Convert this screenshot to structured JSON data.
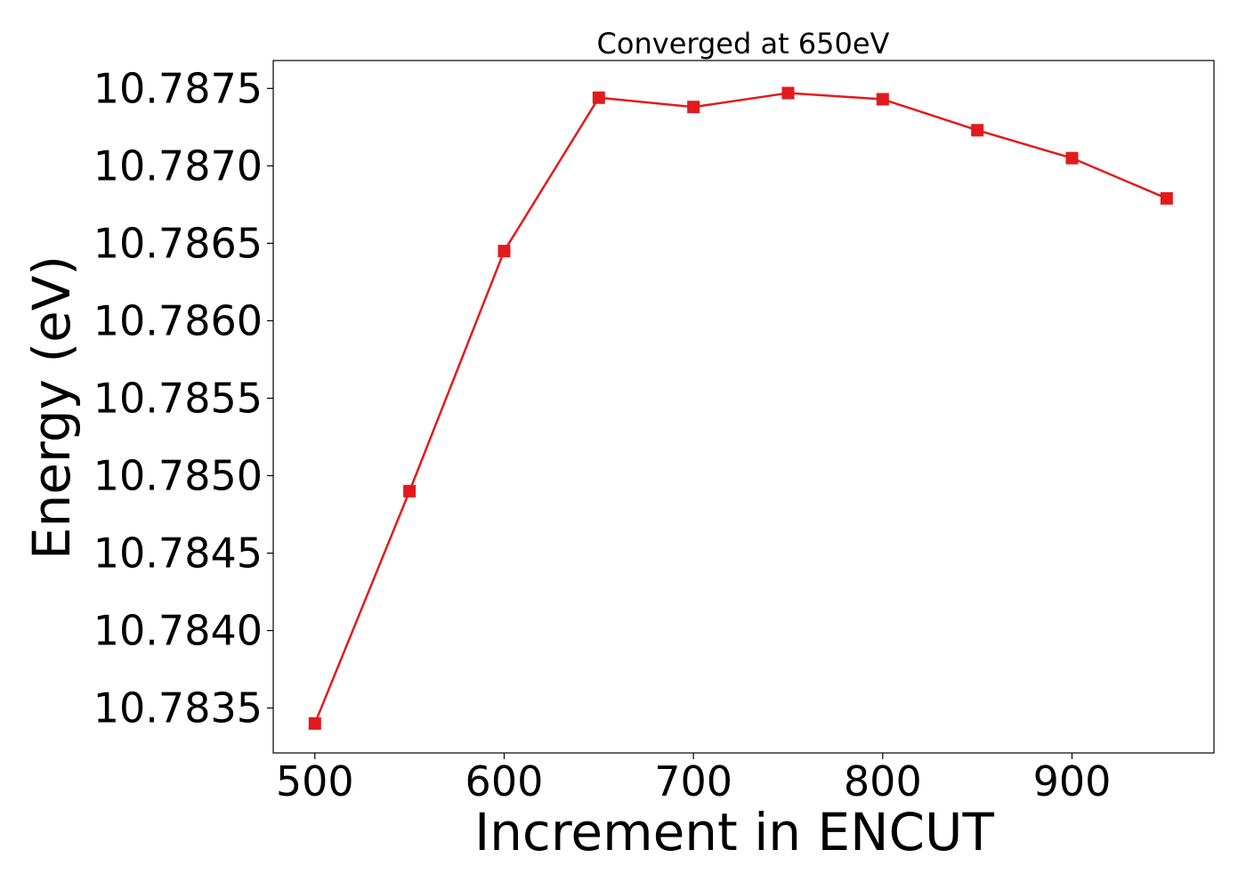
{
  "chart_data": {
    "type": "line",
    "title": "Converged at 650eV",
    "xlabel": "Increment in ENCUT",
    "ylabel": "Energy (eV)",
    "x": [
      500,
      550,
      600,
      650,
      700,
      750,
      800,
      850,
      900,
      950
    ],
    "series": [
      {
        "values": [
          10.7834,
          10.7849,
          10.78645,
          10.78744,
          10.78738,
          10.78747,
          10.78743,
          10.78723,
          10.78705,
          10.78679
        ],
        "color": "#e31a1c",
        "marker": "square"
      }
    ],
    "xlim": [
      478,
      975
    ],
    "ylim": [
      10.78321,
      10.78768
    ],
    "xticks": [
      500,
      600,
      700,
      800,
      900
    ],
    "xtick_labels": [
      "500",
      "600",
      "700",
      "800",
      "900"
    ],
    "yticks": [
      10.7835,
      10.784,
      10.7845,
      10.785,
      10.7855,
      10.786,
      10.7865,
      10.787,
      10.7875
    ],
    "ytick_labels": [
      "10.7835",
      "10.7840",
      "10.7845",
      "10.7850",
      "10.7855",
      "10.7860",
      "10.7865",
      "10.7870",
      "10.7875"
    ],
    "grid": false,
    "legend": "none"
  }
}
